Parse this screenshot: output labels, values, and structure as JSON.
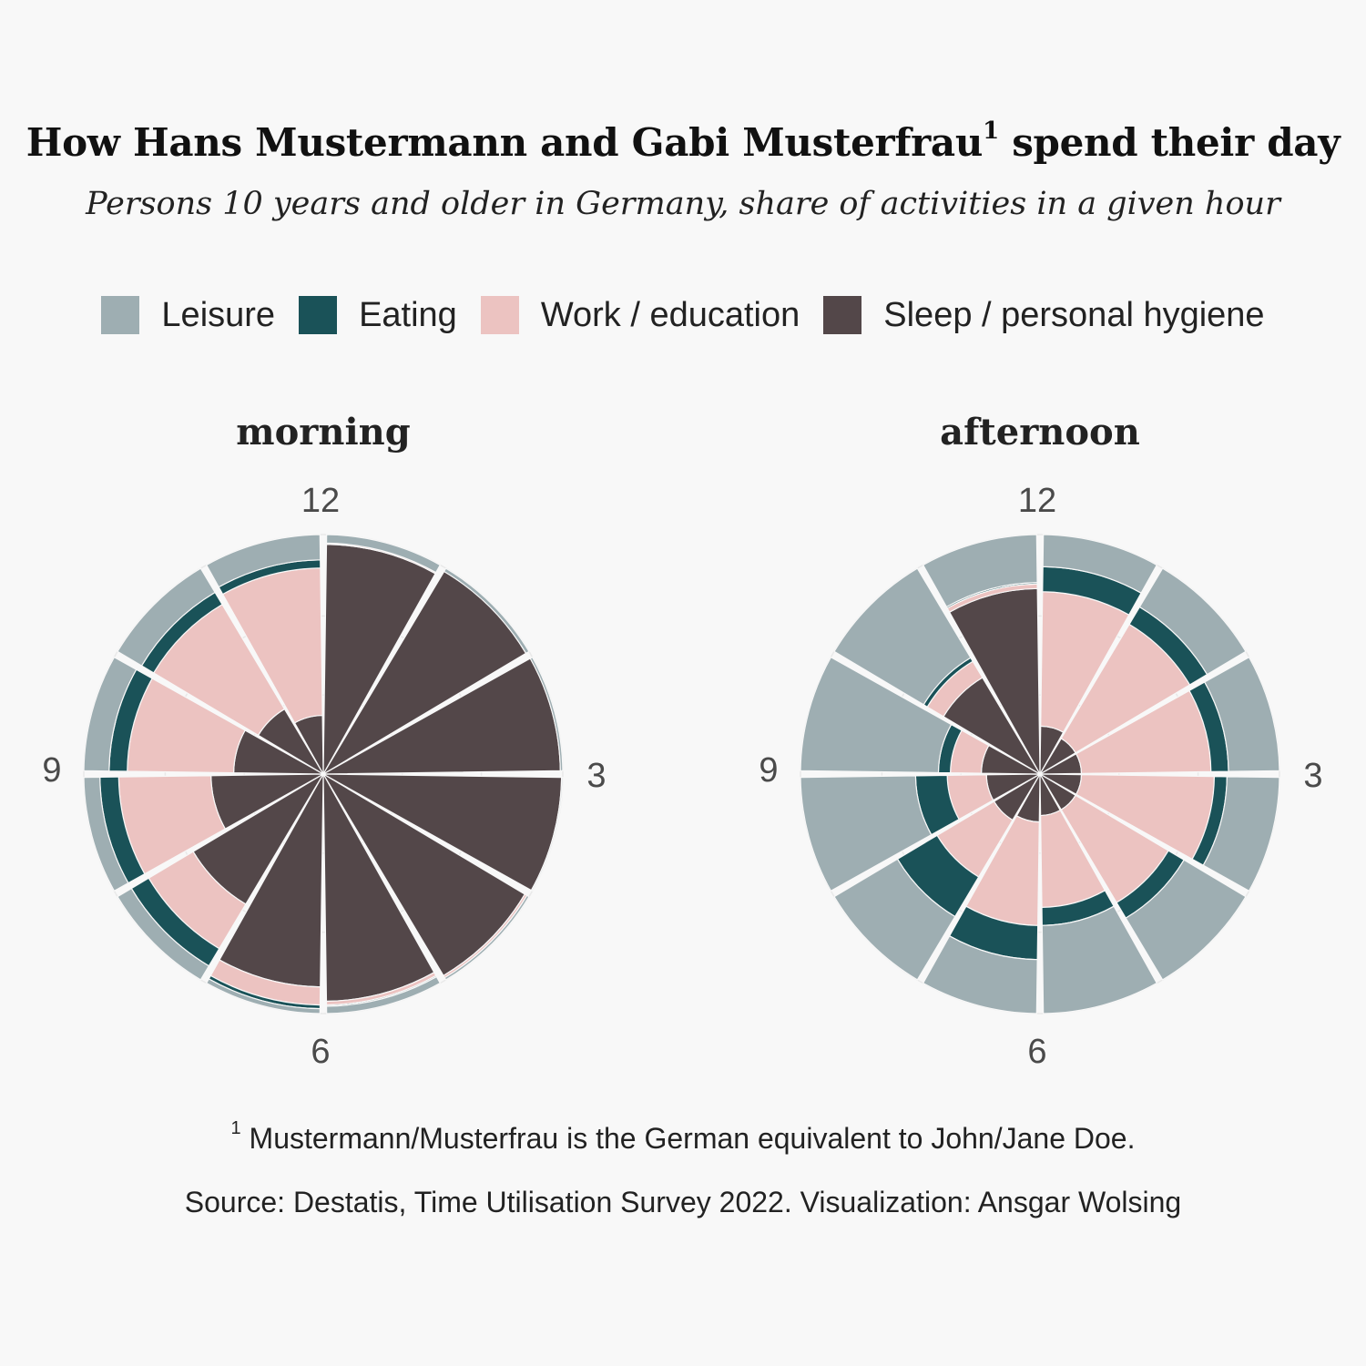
{
  "title": {
    "text": "How Hans Mustermann and Gabi Musterfrau",
    "superscript": "1",
    "suffix": " spend their day"
  },
  "subtitle": "Persons 10 years and older in Germany, share of activities in a given hour",
  "footnote": {
    "marker": "1",
    "text": "Mustermann/Musterfrau is the German equivalent to John/Jane Doe."
  },
  "source": "Source: Destatis, Time Utilisation Survey 2022. Visualization: Ansgar Wolsing",
  "colors": {
    "background": "#f8f8f8",
    "Leisure": "#9eaeb2",
    "Eating": "#1a5258",
    "Work / education": "#ecc3c1",
    "Sleep / personal hygiene": "#534749",
    "grid": "#e9e9e9"
  },
  "chart_data": [
    {
      "type": "stacked-polar-bar",
      "panel": "morning",
      "hour_labels": [
        "12",
        "3",
        "6",
        "9"
      ],
      "legend": [
        "Leisure",
        "Eating",
        "Work / education",
        "Sleep / personal hygiene"
      ],
      "stack_order_inner_to_outer": [
        "Sleep / personal hygiene",
        "Work / education",
        "Eating",
        "Leisure"
      ],
      "hours": [
        0,
        1,
        2,
        3,
        4,
        5,
        6,
        7,
        8,
        9,
        10,
        11
      ],
      "series": [
        {
          "name": "Sleep / personal hygiene",
          "values": [
            0.92,
            0.97,
            0.98,
            0.99,
            0.96,
            0.9,
            0.79,
            0.4,
            0.22,
            0.14,
            0.1,
            0.06
          ]
        },
        {
          "name": "Work / education",
          "values": [
            0.01,
            0.0,
            0.0,
            0.0,
            0.02,
            0.03,
            0.14,
            0.32,
            0.51,
            0.53,
            0.58,
            0.68
          ]
        },
        {
          "name": "Eating",
          "values": [
            0.0,
            0.0,
            0.0,
            0.0,
            0.0,
            0.01,
            0.03,
            0.15,
            0.14,
            0.13,
            0.1,
            0.06
          ]
        },
        {
          "name": "Leisure",
          "values": [
            0.07,
            0.03,
            0.02,
            0.01,
            0.02,
            0.06,
            0.04,
            0.13,
            0.13,
            0.2,
            0.22,
            0.2
          ]
        }
      ]
    },
    {
      "type": "stacked-polar-bar",
      "panel": "afternoon",
      "hour_labels": [
        "12",
        "3",
        "6",
        "9"
      ],
      "legend": [
        "Leisure",
        "Eating",
        "Work / education",
        "Sleep / personal hygiene"
      ],
      "stack_order_inner_to_outer": [
        "Sleep / personal hygiene",
        "Work / education",
        "Eating",
        "Leisure"
      ],
      "hours": [
        12,
        13,
        14,
        15,
        16,
        17,
        18,
        19,
        20,
        21,
        22,
        23
      ],
      "series": [
        {
          "name": "Sleep / personal hygiene",
          "values": [
            0.04,
            0.03,
            0.03,
            0.03,
            0.03,
            0.03,
            0.04,
            0.05,
            0.05,
            0.06,
            0.22,
            0.6
          ]
        },
        {
          "name": "Work / education",
          "values": [
            0.54,
            0.5,
            0.48,
            0.5,
            0.36,
            0.28,
            0.36,
            0.2,
            0.1,
            0.08,
            0.08,
            0.03
          ]
        },
        {
          "name": "Eating",
          "values": [
            0.17,
            0.13,
            0.11,
            0.08,
            0.1,
            0.09,
            0.2,
            0.23,
            0.12,
            0.04,
            0.02,
            0.01
          ]
        },
        {
          "name": "Leisure",
          "values": [
            0.25,
            0.34,
            0.38,
            0.39,
            0.51,
            0.6,
            0.4,
            0.52,
            0.73,
            0.82,
            0.68,
            0.36
          ]
        }
      ]
    }
  ]
}
